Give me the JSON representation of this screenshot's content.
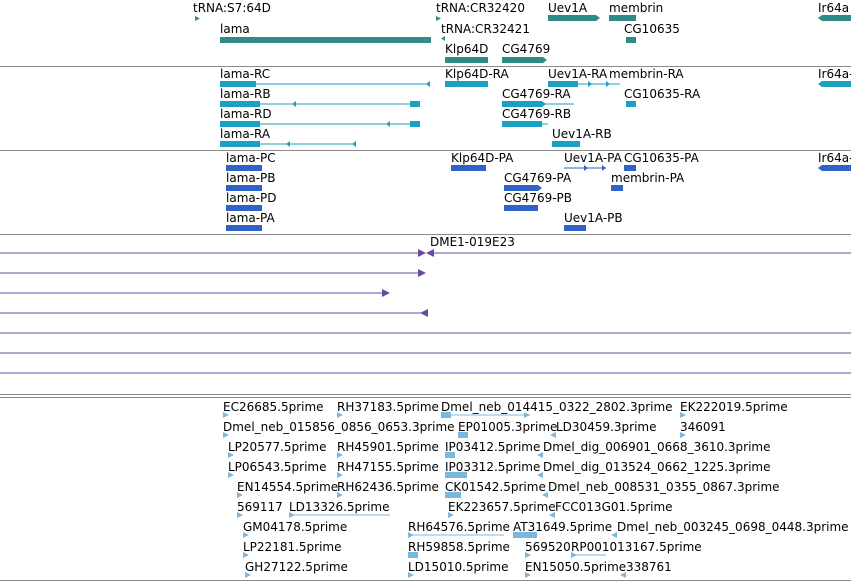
{
  "colors": {
    "gene": "#2e8b86",
    "transcript": "#1aa0c0",
    "protein": "#2f63c8",
    "clone": "#6a4aa0",
    "est": "#7ab8e0",
    "border": "#8a8a8a"
  },
  "tracks": {
    "genes": {
      "labels": [
        {
          "text": "tRNA:S7:64D"
        },
        {
          "text": "tRNA:CR32420"
        },
        {
          "text": "Uev1A"
        },
        {
          "text": "membrin"
        },
        {
          "text": "Ir64a"
        },
        {
          "text": "lama"
        },
        {
          "text": "tRNA:CR32421"
        },
        {
          "text": "CG10635"
        },
        {
          "text": "Klp64D"
        },
        {
          "text": "CG4769"
        }
      ]
    },
    "transcripts": {
      "labels": [
        {
          "text": "lama-RC"
        },
        {
          "text": "Klp64D-RA"
        },
        {
          "text": "Uev1A-RA"
        },
        {
          "text": "membrin-RA"
        },
        {
          "text": "Ir64a-"
        },
        {
          "text": "lama-RB"
        },
        {
          "text": "CG4769-RA"
        },
        {
          "text": "CG10635-RA"
        },
        {
          "text": "lama-RD"
        },
        {
          "text": "CG4769-RB"
        },
        {
          "text": "lama-RA"
        },
        {
          "text": "Uev1A-RB"
        }
      ]
    },
    "proteins": {
      "labels": [
        {
          "text": "lama-PC"
        },
        {
          "text": "Klp64D-PA"
        },
        {
          "text": "Uev1A-PA"
        },
        {
          "text": "CG10635-PA"
        },
        {
          "text": "Ir64a-"
        },
        {
          "text": "lama-PB"
        },
        {
          "text": "CG4769-PA"
        },
        {
          "text": "membrin-PA"
        },
        {
          "text": "lama-PD"
        },
        {
          "text": "CG4769-PB"
        },
        {
          "text": "lama-PA"
        },
        {
          "text": "Uev1A-PB"
        }
      ]
    },
    "clones": {
      "labels": [
        {
          "text": "DME1-019E23"
        }
      ]
    },
    "ests": {
      "labels": [
        {
          "text": "EC26685.5prime"
        },
        {
          "text": "RH37183.5prime"
        },
        {
          "text": "Dmel_neb_014415_0322_2802.3prime"
        },
        {
          "text": "EK222019.5prime"
        },
        {
          "text": "Dmel_neb_015856_0856_0653.3prime"
        },
        {
          "text": "EP01005.3prime"
        },
        {
          "text": "LD30459.3prime"
        },
        {
          "text": "346091"
        },
        {
          "text": "LP20577.5prime"
        },
        {
          "text": "RH45901.5prime"
        },
        {
          "text": "IP03412.5prime"
        },
        {
          "text": "Dmel_dig_006901_0668_3610.3prime"
        },
        {
          "text": "LP06543.5prime"
        },
        {
          "text": "RH47155.5prime"
        },
        {
          "text": "IP03312.5prime"
        },
        {
          "text": "Dmel_dig_013524_0662_1225.3prime"
        },
        {
          "text": "EN14554.5prime"
        },
        {
          "text": "RH62436.5prime"
        },
        {
          "text": "CK01542.5prime"
        },
        {
          "text": "Dmel_neb_008531_0355_0867.3prime"
        },
        {
          "text": "569117"
        },
        {
          "text": "LD13326.5prime"
        },
        {
          "text": "EK223657.5prime"
        },
        {
          "text": "FCC013G01.5prime"
        },
        {
          "text": "GM04178.5prime"
        },
        {
          "text": "RH64576.5prime"
        },
        {
          "text": "AT31649.5prime"
        },
        {
          "text": "Dmel_neb_003245_0698_0448.3prime"
        },
        {
          "text": "LP22181.5prime"
        },
        {
          "text": "RH59858.5prime"
        },
        {
          "text": "569520"
        },
        {
          "text": "RP001013167.5prime"
        },
        {
          "text": "GH27122.5prime"
        },
        {
          "text": "LD15010.5prime"
        },
        {
          "text": "EN15050.5prime"
        },
        {
          "text": "338761"
        }
      ]
    }
  }
}
